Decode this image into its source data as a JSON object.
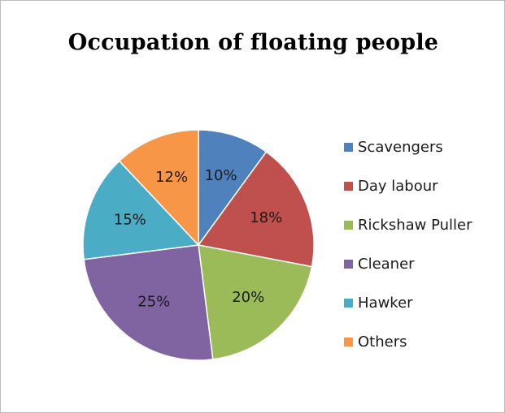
{
  "chart_data": {
    "type": "pie",
    "title": "Occupation of floating people",
    "legend_position": "right",
    "slices": [
      {
        "label": "Scavengers",
        "value": 10,
        "display": "10%",
        "color": "#4f81bd"
      },
      {
        "label": "Day labour",
        "value": 18,
        "display": "18%",
        "color": "#c0504d"
      },
      {
        "label": "Rickshaw Puller",
        "value": 20,
        "display": "20%",
        "color": "#9bbb59"
      },
      {
        "label": "Cleaner",
        "value": 25,
        "display": "25%",
        "color": "#8064a2"
      },
      {
        "label": "Hawker",
        "value": 15,
        "display": "15%",
        "color": "#4bacc6"
      },
      {
        "label": "Others",
        "value": 12,
        "display": "12%",
        "color": "#f79646"
      }
    ]
  }
}
